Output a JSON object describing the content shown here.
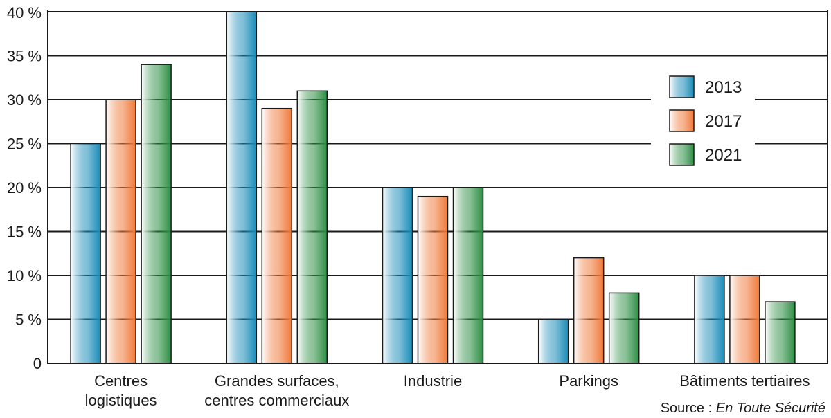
{
  "chart_data": {
    "type": "bar",
    "categories": [
      [
        "Centres",
        "logistiques"
      ],
      [
        "Grandes surfaces,",
        "centres commerciaux"
      ],
      [
        "Industrie"
      ],
      [
        "Parkings"
      ],
      [
        "Bâtiments tertiaires"
      ]
    ],
    "series": [
      {
        "name": "2013",
        "values": [
          25,
          40,
          20,
          5,
          10
        ],
        "color": "#1a8cb8"
      },
      {
        "name": "2017",
        "values": [
          30,
          29,
          19,
          12,
          10
        ],
        "color": "#f07a3a"
      },
      {
        "name": "2021",
        "values": [
          34,
          31,
          20,
          8,
          7
        ],
        "color": "#2e8f45"
      }
    ],
    "ylim": [
      0,
      40
    ],
    "yticks": [
      0,
      5,
      10,
      15,
      20,
      25,
      30,
      35,
      40
    ],
    "ytick_labels": [
      "0",
      "5 %",
      "10 %",
      "15 %",
      "20 %",
      "25 %",
      "30 %",
      "35 %",
      "40 %"
    ],
    "grid": true,
    "legend": "right",
    "source_prefix": "Source : ",
    "source_name": "En Toute Sécurité"
  }
}
